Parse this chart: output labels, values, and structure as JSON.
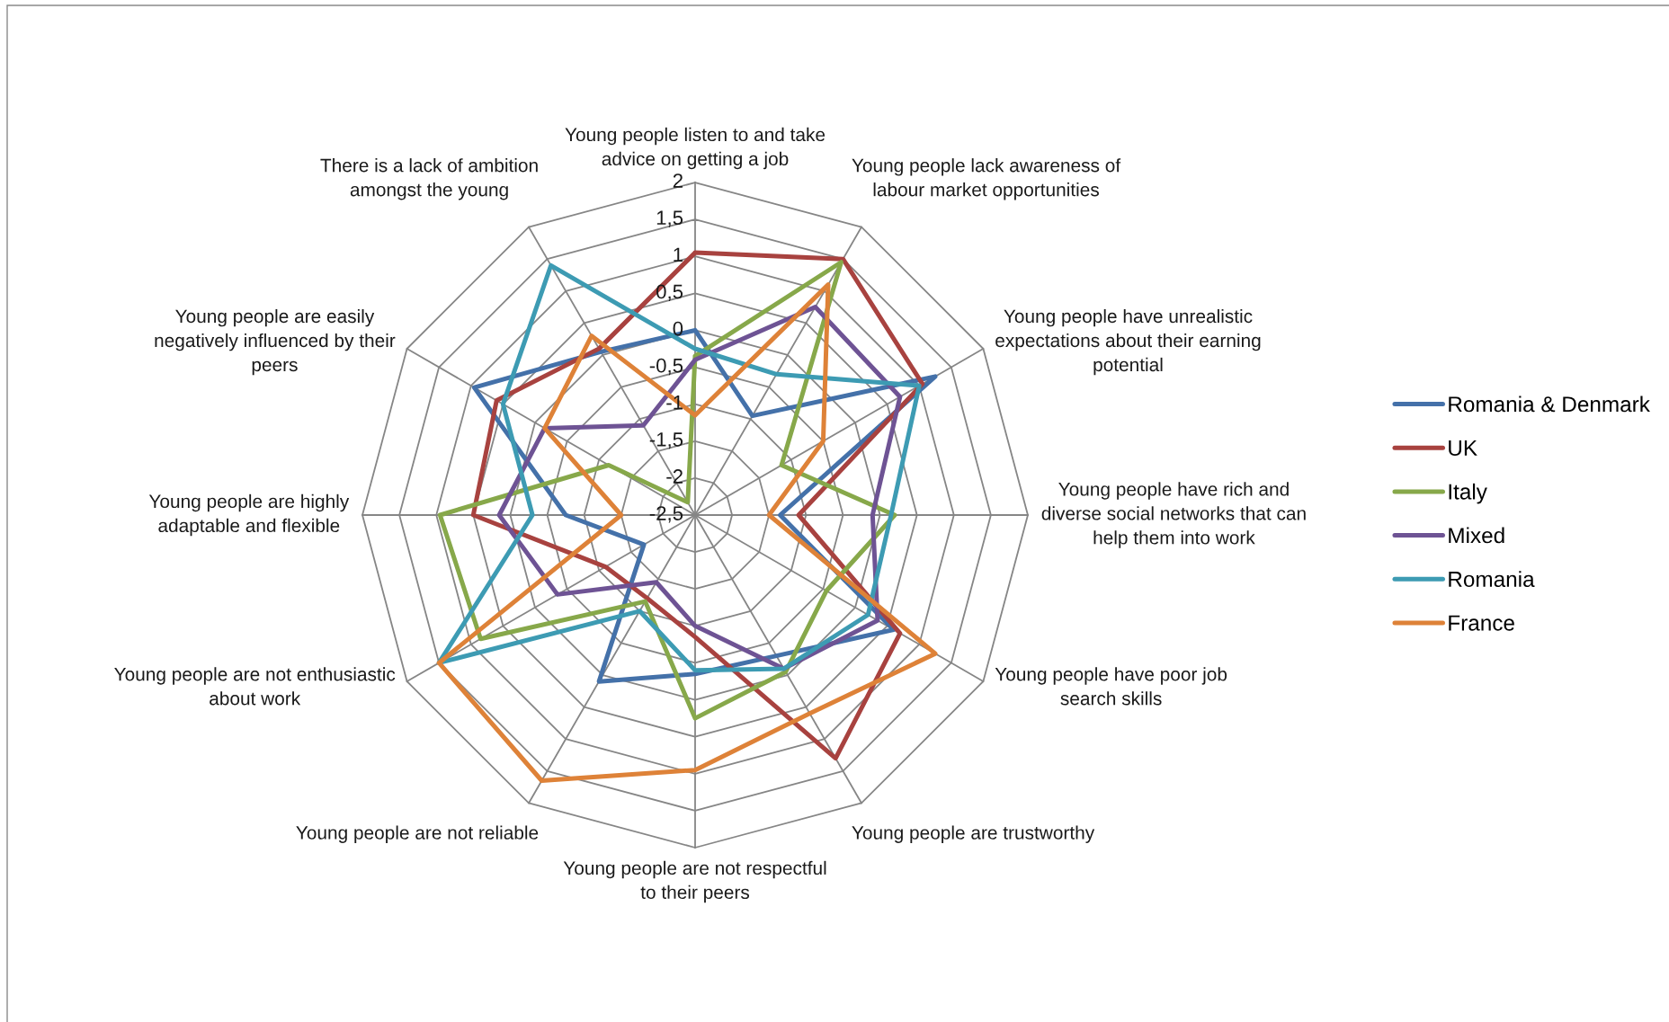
{
  "chart_data": {
    "type": "radar",
    "categories": [
      "Young people listen to and take\nadvice on getting a job",
      "Young people lack awareness of\nlabour market opportunities",
      "Young people have unrealistic\nexpectations about their earning\npotential",
      "Young people have rich and\ndiverse social networks that can\nhelp them into work",
      "Young people have poor job\nsearch skills",
      "Young people are trustworthy",
      "Young people are not respectful\nto their peers",
      "Young people are not reliable",
      "Young people are not enthusiastic\nabout work",
      "Young people are highly\nadaptable and flexible",
      "Young people are easily\nnegatively influenced by their\npeers",
      "There is a lack of ambition\namongst the young"
    ],
    "series": [
      {
        "name": "Romania & Denmark",
        "color": "#4471a9",
        "values": [
          0.0,
          -0.95,
          1.25,
          -1.35,
          0.6,
          -0.3,
          -0.35,
          0.1,
          -1.7,
          -0.75,
          0.95,
          0.05
        ]
      },
      {
        "name": "UK",
        "color": "#a8423f",
        "values": [
          1.05,
          1.5,
          1.05,
          -1.1,
          0.7,
          1.3,
          -0.85,
          -1.2,
          -1.1,
          0.5,
          0.6,
          0.1
        ]
      },
      {
        "name": "Italy",
        "color": "#87a84a",
        "values": [
          -0.35,
          1.45,
          -1.15,
          0.2,
          -0.45,
          -0.05,
          0.25,
          -1.15,
          0.85,
          0.95,
          -1.15,
          -2.3
        ]
      },
      {
        "name": "Mixed",
        "color": "#6e5394",
        "values": [
          -0.4,
          0.75,
          0.7,
          -0.1,
          0.35,
          -0.1,
          -1.0,
          -1.45,
          -0.35,
          0.15,
          -0.15,
          -1.1
        ]
      },
      {
        "name": "Romania",
        "color": "#3d9bb3",
        "values": [
          -0.25,
          -0.3,
          1.0,
          0.15,
          0.2,
          -0.1,
          -0.4,
          -1.0,
          1.5,
          -0.3,
          0.5,
          1.4
        ]
      },
      {
        "name": "France",
        "color": "#de8238",
        "values": [
          -1.15,
          1.1,
          -0.5,
          -1.5,
          1.25,
          0.6,
          0.95,
          1.65,
          1.5,
          -1.5,
          -0.15,
          0.3
        ]
      }
    ],
    "ylim": [
      -2.5,
      2
    ],
    "yticks": [
      2,
      {
        "value": 1.5,
        "label": "1,5"
      },
      1,
      {
        "value": 0.5,
        "label": "0,5"
      },
      0,
      {
        "value": -0.5,
        "label": "-0,5"
      },
      -1,
      {
        "value": -1.5,
        "label": "-1,5"
      },
      -2,
      {
        "value": -2.5,
        "label": "-2,5"
      }
    ],
    "grid": true,
    "legend": "right"
  }
}
